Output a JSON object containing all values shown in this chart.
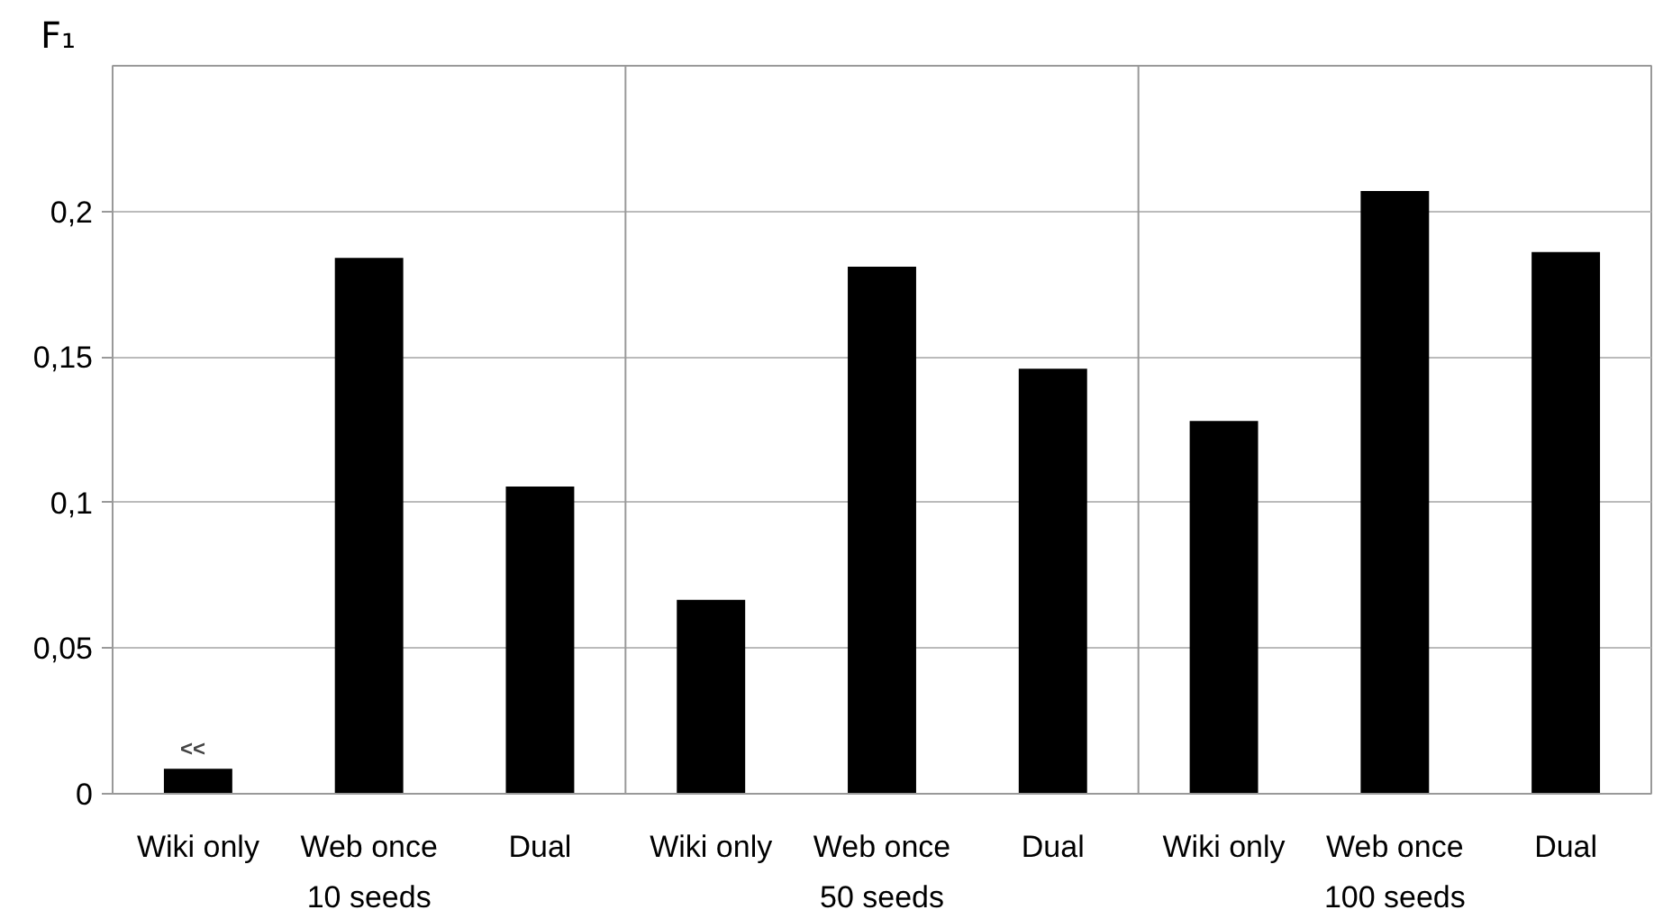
{
  "chart_data": {
    "type": "bar",
    "ylabel": "F₁",
    "categories": [
      "Wiki only",
      "Web once",
      "Dual",
      "Wiki only",
      "Web once",
      "Dual",
      "Wiki only",
      "Web once",
      "Dual"
    ],
    "values": [
      0.0086,
      0.184,
      0.1055,
      0.0666,
      0.181,
      0.146,
      0.128,
      0.207,
      0.186
    ],
    "color": "#000000",
    "ylim": [
      0,
      0.25
    ],
    "yticks": [
      {
        "value": 0,
        "label": "0"
      },
      {
        "value": 0.05,
        "label": "0,05"
      },
      {
        "value": 0.1,
        "label": "0,1"
      },
      {
        "value": 0.15,
        "label": "0,15"
      },
      {
        "value": 0.2,
        "label": "0,2"
      }
    ],
    "grid": "y",
    "annotations": [
      {
        "text": "<<",
        "x": "Wiki only",
        "y": 0.0086
      },
      "10 seeds",
      "50 seeds",
      "100 seeds"
    ]
  }
}
